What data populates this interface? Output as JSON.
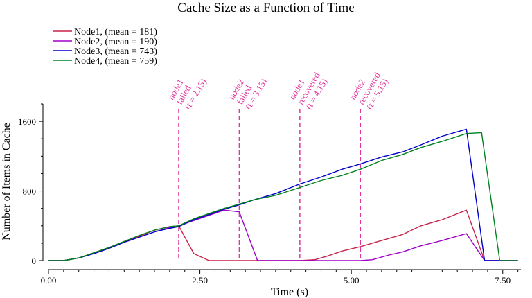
{
  "chart_data": {
    "type": "line",
    "title": "Cache Size as a Function of Time",
    "xlabel": "Time (s)",
    "ylabel": "Number of Items in Cache",
    "xlim": [
      0,
      7.8
    ],
    "ylim": [
      0,
      1800
    ],
    "xticks": [
      0,
      2.5,
      5,
      7.5
    ],
    "xtick_labels": [
      "0.00",
      "2.50",
      "5.00",
      "7.50"
    ],
    "yticks": [
      0,
      800,
      1600
    ],
    "ytick_labels": [
      "0",
      "800",
      "1600"
    ],
    "legend_position": "top-left",
    "series": [
      {
        "name": "Node1, (mean = 181)",
        "color": "#c8234b",
        "x": [
          0,
          0.25,
          0.5,
          0.75,
          1.0,
          1.25,
          1.5,
          1.75,
          2.0,
          2.15,
          2.4,
          2.65,
          2.9,
          3.2,
          3.5,
          3.8,
          4.15,
          4.4,
          4.6,
          4.85,
          5.15,
          5.5,
          5.85,
          6.15,
          6.5,
          6.9,
          7.2,
          7.45,
          7.75
        ],
        "y": [
          0,
          0,
          30,
          90,
          150,
          220,
          280,
          350,
          390,
          400,
          80,
          0,
          0,
          0,
          0,
          0,
          0,
          10,
          50,
          110,
          160,
          230,
          300,
          400,
          470,
          580,
          0,
          0,
          0
        ]
      },
      {
        "name": "Node2, (mean = 190)",
        "color": "#a000c8",
        "x": [
          0,
          0.25,
          0.5,
          0.75,
          1.0,
          1.25,
          1.5,
          1.75,
          2.0,
          2.15,
          2.4,
          2.65,
          2.9,
          3.15,
          3.45,
          3.8,
          4.15,
          4.5,
          4.85,
          5.15,
          5.35,
          5.6,
          5.85,
          6.15,
          6.5,
          6.9,
          7.2,
          7.45,
          7.75
        ],
        "y": [
          0,
          0,
          30,
          80,
          140,
          210,
          270,
          330,
          380,
          400,
          460,
          520,
          580,
          560,
          0,
          0,
          0,
          0,
          0,
          0,
          10,
          60,
          100,
          170,
          230,
          310,
          0,
          0,
          0
        ]
      },
      {
        "name": "Node3, (mean = 743)",
        "color": "#0000c8",
        "x": [
          0,
          0.25,
          0.5,
          0.75,
          1.0,
          1.25,
          1.5,
          1.75,
          2.0,
          2.15,
          2.4,
          2.65,
          2.9,
          3.15,
          3.4,
          3.75,
          4.15,
          4.5,
          4.85,
          5.15,
          5.5,
          5.85,
          6.15,
          6.5,
          6.9,
          7.2,
          7.45,
          7.75
        ],
        "y": [
          0,
          0,
          30,
          80,
          140,
          210,
          270,
          330,
          370,
          390,
          470,
          530,
          590,
          640,
          700,
          770,
          880,
          960,
          1050,
          1110,
          1190,
          1250,
          1330,
          1430,
          1510,
          0,
          0,
          0
        ]
      },
      {
        "name": "Node4, (mean = 759)",
        "color": "#00821e",
        "x": [
          0,
          0.25,
          0.5,
          0.75,
          1.0,
          1.25,
          1.5,
          1.75,
          2.0,
          2.15,
          2.4,
          2.65,
          2.9,
          3.15,
          3.4,
          3.75,
          4.15,
          4.5,
          4.85,
          5.15,
          5.5,
          5.85,
          6.15,
          6.5,
          6.9,
          7.15,
          7.45,
          7.75
        ],
        "y": [
          0,
          0,
          30,
          90,
          150,
          220,
          290,
          350,
          390,
          400,
          480,
          540,
          600,
          650,
          700,
          750,
          840,
          920,
          980,
          1050,
          1150,
          1220,
          1300,
          1370,
          1460,
          1470,
          0,
          0
        ]
      }
    ],
    "annotations": [
      {
        "x": 2.15,
        "lines": [
          "node1",
          "failed",
          "(t = 2.15)"
        ]
      },
      {
        "x": 3.15,
        "lines": [
          "node2",
          "failed",
          "(t = 3.15)"
        ]
      },
      {
        "x": 4.15,
        "lines": [
          "node1",
          "recovered",
          "(t = 4.15)"
        ]
      },
      {
        "x": 5.15,
        "lines": [
          "node2",
          "recovered",
          "(t = 5.15)"
        ]
      }
    ],
    "annotation_color": "#e0359e"
  }
}
